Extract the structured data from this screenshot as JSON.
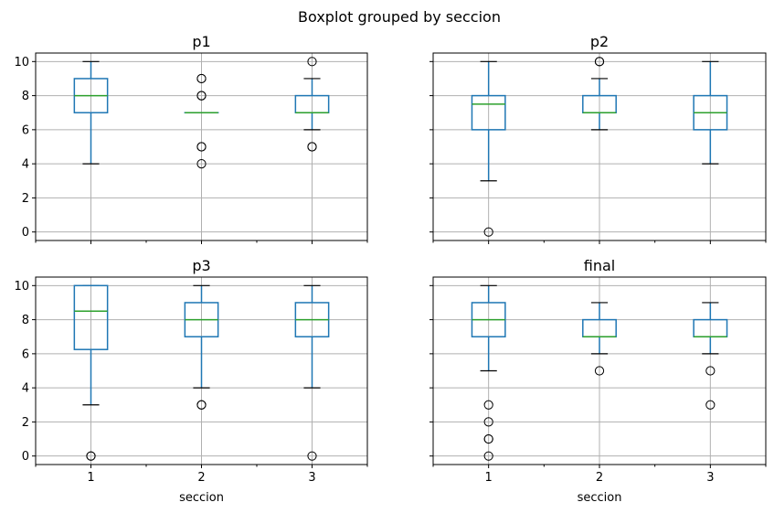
{
  "chart_data": {
    "type": "boxplot",
    "title": "Boxplot grouped by seccion",
    "xlabel": "seccion",
    "categories": [
      "1",
      "2",
      "3"
    ],
    "ylim": [
      -0.5,
      10.5
    ],
    "yticks": [
      0,
      2,
      4,
      6,
      8,
      10
    ],
    "grid": true,
    "colors": {
      "box": "#1f77b4",
      "median": "#2ca02c",
      "grid": "#b0b0b0",
      "flier": "#000000"
    },
    "panels": [
      {
        "title": "p1",
        "groups": [
          {
            "category": "1",
            "whisker_low": 4,
            "q1": 7,
            "median": 8,
            "q3": 9,
            "whisker_high": 10,
            "fliers": []
          },
          {
            "category": "2",
            "whisker_low": 7,
            "q1": 7,
            "median": 7,
            "q3": 7,
            "whisker_high": 7,
            "fliers": [
              4,
              5,
              5,
              8,
              8,
              9,
              9
            ]
          },
          {
            "category": "3",
            "whisker_low": 6,
            "q1": 7,
            "median": 7,
            "q3": 8,
            "whisker_high": 9,
            "fliers": [
              5,
              5,
              10
            ]
          }
        ]
      },
      {
        "title": "p2",
        "groups": [
          {
            "category": "1",
            "whisker_low": 3,
            "q1": 6,
            "median": 7.5,
            "q3": 8,
            "whisker_high": 10,
            "fliers": [
              0
            ]
          },
          {
            "category": "2",
            "whisker_low": 6,
            "q1": 7,
            "median": 7,
            "q3": 8,
            "whisker_high": 9,
            "fliers": [
              10,
              10
            ]
          },
          {
            "category": "3",
            "whisker_low": 4,
            "q1": 6,
            "median": 7,
            "q3": 8,
            "whisker_high": 10,
            "fliers": []
          }
        ]
      },
      {
        "title": "p3",
        "groups": [
          {
            "category": "1",
            "whisker_low": 3,
            "q1": 6.25,
            "median": 8.5,
            "q3": 10,
            "whisker_high": 10,
            "fliers": [
              0,
              0
            ]
          },
          {
            "category": "2",
            "whisker_low": 4,
            "q1": 7,
            "median": 8,
            "q3": 9,
            "whisker_high": 10,
            "fliers": [
              3,
              3
            ]
          },
          {
            "category": "3",
            "whisker_low": 4,
            "q1": 7,
            "median": 8,
            "q3": 9,
            "whisker_high": 10,
            "fliers": [
              0
            ]
          }
        ]
      },
      {
        "title": "final",
        "groups": [
          {
            "category": "1",
            "whisker_low": 5,
            "q1": 7,
            "median": 8,
            "q3": 9,
            "whisker_high": 10,
            "fliers": [
              0,
              1,
              1,
              2,
              3
            ]
          },
          {
            "category": "2",
            "whisker_low": 6,
            "q1": 7,
            "median": 7,
            "q3": 8,
            "whisker_high": 9,
            "fliers": [
              5
            ]
          },
          {
            "category": "3",
            "whisker_low": 6,
            "q1": 7,
            "median": 7,
            "q3": 8,
            "whisker_high": 9,
            "fliers": [
              3,
              5
            ]
          }
        ]
      }
    ]
  }
}
